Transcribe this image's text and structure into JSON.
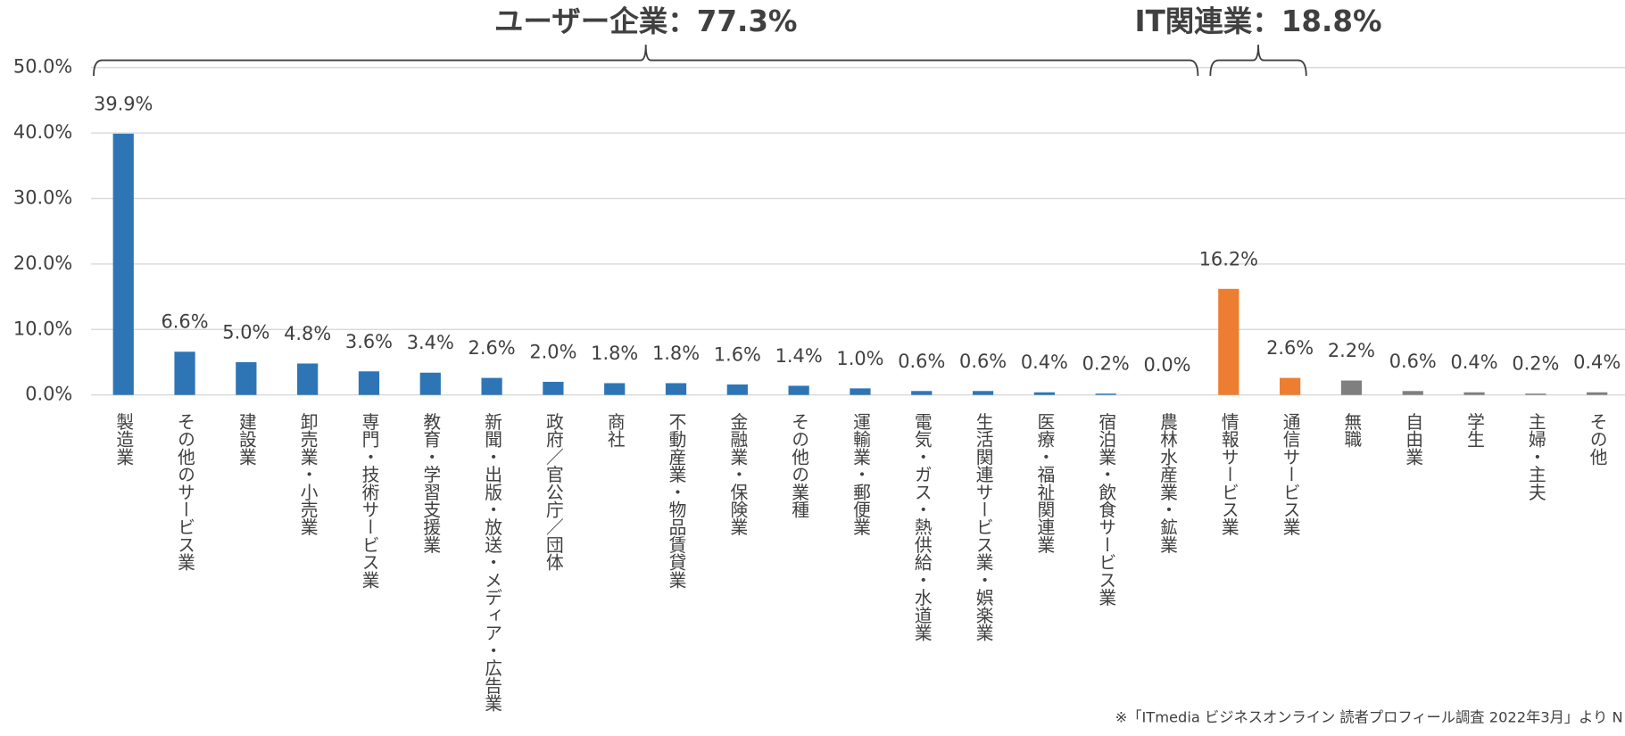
{
  "chart_data": {
    "type": "bar",
    "annotations": [
      {
        "text": "ユーザー企業：77.3%"
      },
      {
        "text": "IT関連業：18.8%"
      }
    ],
    "categories": [
      "製造業",
      "その他のサービス業",
      "建設業",
      "卸売業・小売業",
      "専門・技術サービス業",
      "教育・学習支援業",
      "新聞・出版・放送・メディア・広告業",
      "政府／官公庁／団体",
      "商社",
      "不動産業・物品賃貸業",
      "金融業・保険業",
      "その他の業種",
      "運輸業・郵便業",
      "電気・ガス・熱供給・水道業",
      "生活関連サービス業・娯楽業",
      "医療・福祉関連業",
      "宿泊業・飲食サービス業",
      "農林水産業・鉱業",
      "情報サービス業",
      "通信サービス業",
      "無職",
      "自由業",
      "学生",
      "主婦・主夫",
      "その他"
    ],
    "values": [
      39.9,
      6.6,
      5.0,
      4.8,
      3.6,
      3.4,
      2.6,
      2.0,
      1.8,
      1.8,
      1.6,
      1.4,
      1.0,
      0.6,
      0.6,
      0.4,
      0.2,
      0.0,
      16.2,
      2.6,
      2.2,
      0.6,
      0.4,
      0.2,
      0.4
    ],
    "value_labels": [
      "39.9%",
      "6.6%",
      "5.0%",
      "4.8%",
      "3.6%",
      "3.4%",
      "2.6%",
      "2.0%",
      "1.8%",
      "1.8%",
      "1.6%",
      "1.4%",
      "1.0%",
      "0.6%",
      "0.6%",
      "0.4%",
      "0.2%",
      "0.0%",
      "16.2%",
      "2.6%",
      "2.2%",
      "0.6%",
      "0.4%",
      "0.2%",
      "0.4%"
    ],
    "colors": [
      "#2e75b6",
      "#2e75b6",
      "#2e75b6",
      "#2e75b6",
      "#2e75b6",
      "#2e75b6",
      "#2e75b6",
      "#2e75b6",
      "#2e75b6",
      "#2e75b6",
      "#2e75b6",
      "#2e75b6",
      "#2e75b6",
      "#2e75b6",
      "#2e75b6",
      "#2e75b6",
      "#2e75b6",
      "#2e75b6",
      "#ed7d31",
      "#ed7d31",
      "#7f7f7f",
      "#7f7f7f",
      "#7f7f7f",
      "#7f7f7f",
      "#7f7f7f"
    ],
    "ylim": [
      0,
      50
    ],
    "yticks": [
      {
        "value": 0,
        "label": "0.0%"
      },
      {
        "value": 10,
        "label": "10.0%"
      },
      {
        "value": 20,
        "label": "20.0%"
      },
      {
        "value": 30,
        "label": "30.0%"
      },
      {
        "value": 40,
        "label": "40.0%"
      },
      {
        "value": 50,
        "label": "50.0%"
      }
    ],
    "grid": true,
    "source": "※「ITmedia ビジネスオンライン 読者プロフィール調査 2022年3月」より N"
  }
}
